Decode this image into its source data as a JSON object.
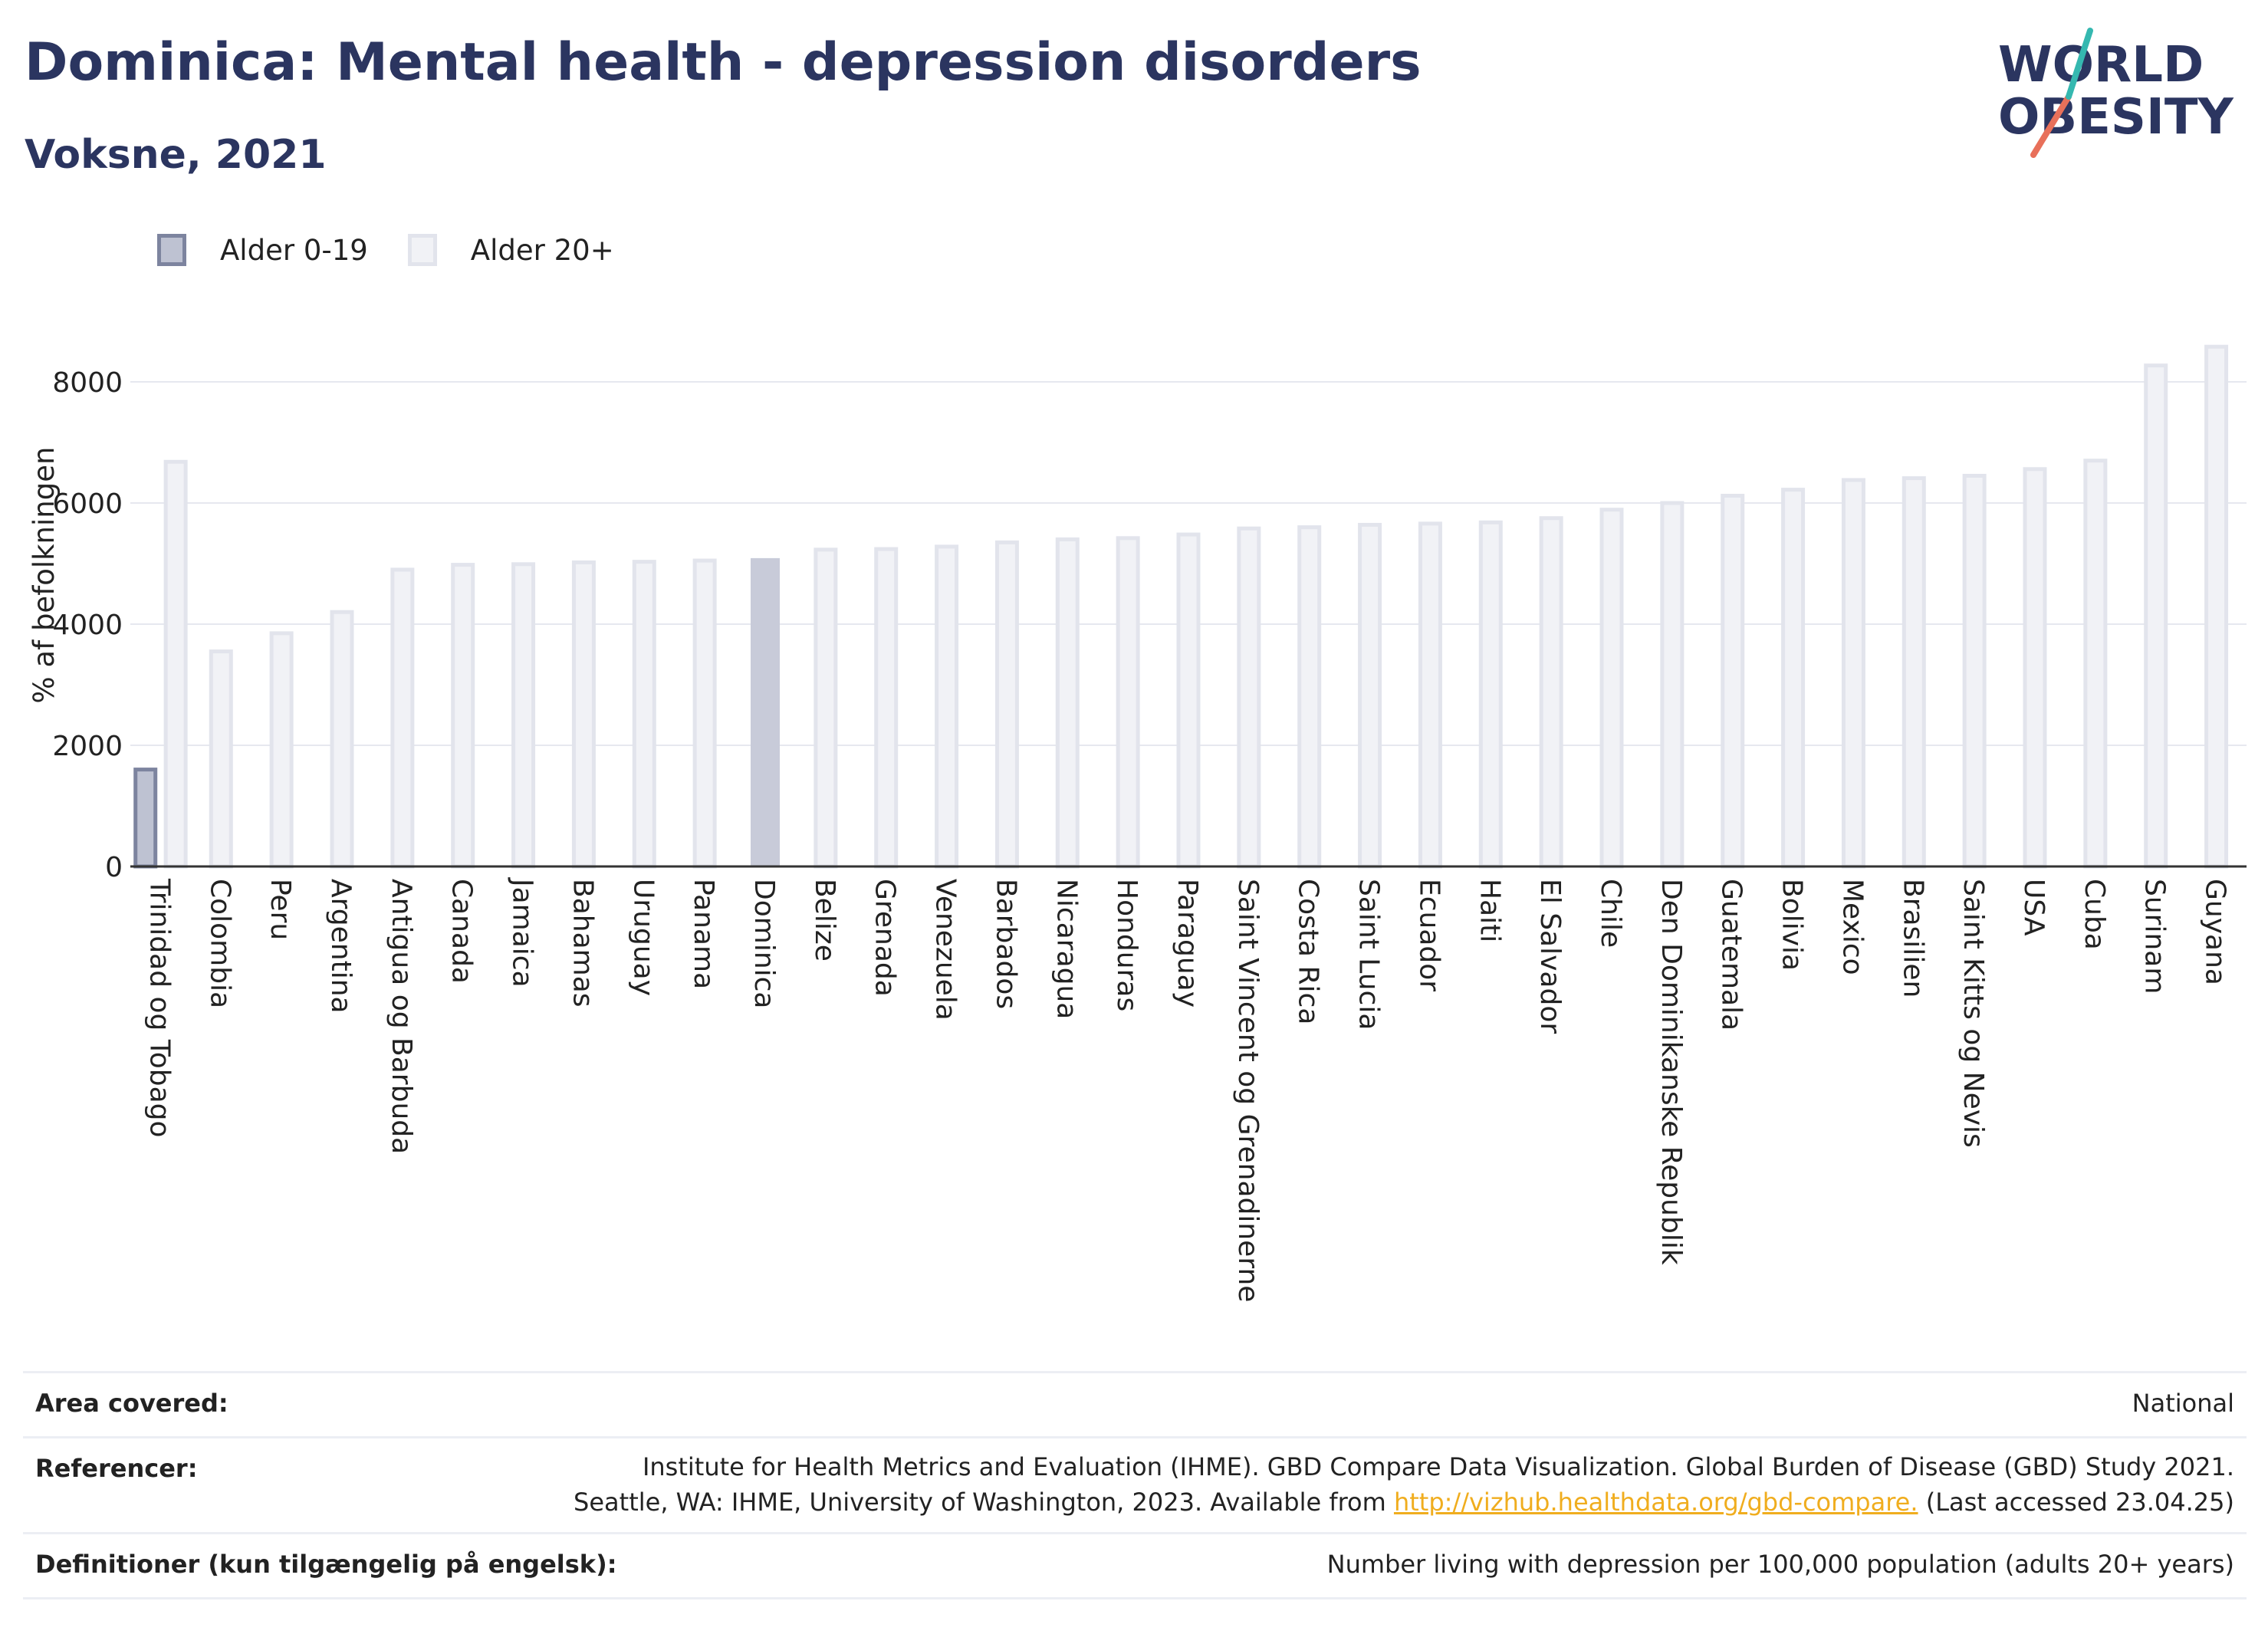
{
  "header": {
    "title": "Dominica: Mental health - depression disorders",
    "subtitle": "Voksne, 2021"
  },
  "logo": {
    "line1": "WORLD",
    "line2": "OBESITY"
  },
  "legend": {
    "items": [
      {
        "label": "Alder 0-19",
        "color": "#bec2d2"
      },
      {
        "label": "Alder 20+",
        "color": "#f1f2f6"
      }
    ]
  },
  "chart_data": {
    "type": "bar",
    "ylabel": "% af befolkningen",
    "xlabel": "",
    "ylim": [
      0,
      9000
    ],
    "yticks": [
      0,
      2000,
      4000,
      6000,
      8000
    ],
    "grid": true,
    "legend_position": "top-left",
    "highlight_category": "Dominica",
    "highlight_color": "#c8cbd9",
    "categories": [
      "Trinidad og Tobago",
      "Colombia",
      "Peru",
      "Argentina",
      "Antigua og Barbuda",
      "Canada",
      "Jamaica",
      "Bahamas",
      "Uruguay",
      "Panama",
      "Dominica",
      "Belize",
      "Grenada",
      "Venezuela",
      "Barbados",
      "Nicaragua",
      "Honduras",
      "Paraguay",
      "Saint Vincent og Grenadinerne",
      "Costa Rica",
      "Saint Lucia",
      "Ecuador",
      "Haiti",
      "El Salvador",
      "Chile",
      "Den Dominikanske Republik",
      "Guatemala",
      "Bolivia",
      "Mexico",
      "Brasilien",
      "Saint Kitts og Nevis",
      "USA",
      "Cuba",
      "Surinam",
      "Guyana"
    ],
    "series": [
      {
        "name": "Alder 0-19",
        "color": "#bec2d2",
        "values": [
          1600,
          null,
          null,
          null,
          null,
          null,
          null,
          null,
          null,
          null,
          null,
          null,
          null,
          null,
          null,
          null,
          null,
          null,
          null,
          null,
          null,
          null,
          null,
          null,
          null,
          null,
          null,
          null,
          null,
          null,
          null,
          null,
          null,
          null,
          null
        ]
      },
      {
        "name": "Alder 20+",
        "color": "#f1f2f6",
        "values": [
          6680,
          3550,
          3850,
          4200,
          4900,
          4980,
          4990,
          5020,
          5030,
          5050,
          5090,
          5230,
          5240,
          5280,
          5350,
          5400,
          5420,
          5480,
          5580,
          5600,
          5640,
          5660,
          5680,
          5750,
          5890,
          6000,
          6120,
          6220,
          6380,
          6410,
          6450,
          6560,
          6700,
          8270,
          8580
        ]
      }
    ]
  },
  "footer": {
    "area_label": "Area covered:",
    "area_value": "National",
    "ref_label": "Referencer:",
    "ref_line1": "Institute for Health Metrics and Evaluation (IHME). GBD Compare Data Visualization. Global Burden of Disease (GBD) Study 2021.",
    "ref_line2_pre": "Seattle, WA: IHME, University of Washington, 2023. Available from ",
    "ref_link": "http://vizhub.healthdata.org/gbd-compare.",
    "ref_line2_post": " (Last accessed 23.04.25)",
    "def_label": "Definitioner (kun tilgængelig på engelsk):",
    "def_value": "Number living with depression per 100,000 population (adults 20+ years)"
  }
}
